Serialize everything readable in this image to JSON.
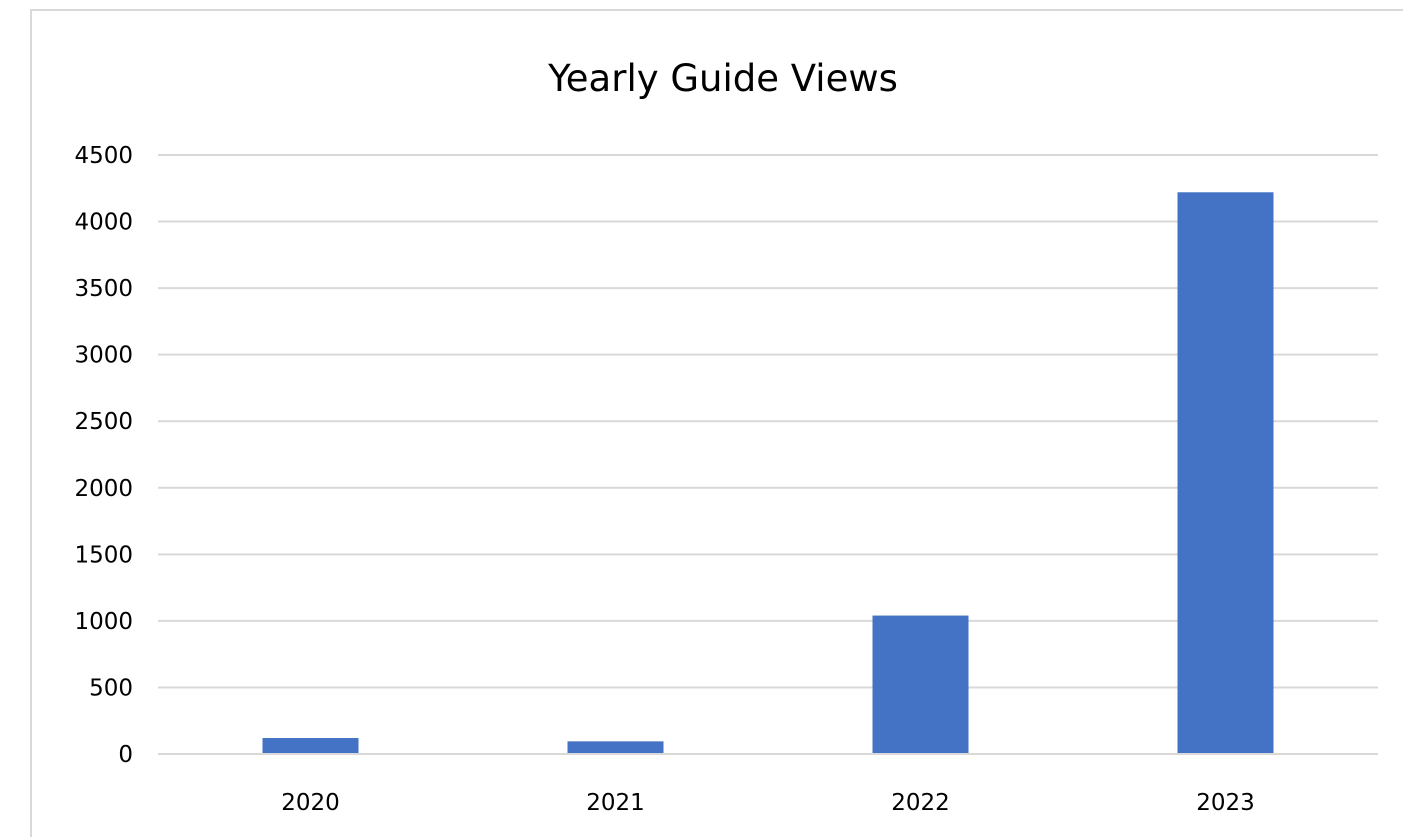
{
  "chart_data": {
    "type": "bar",
    "title": "Yearly Guide Views",
    "categories": [
      "2020",
      "2021",
      "2022",
      "2023"
    ],
    "series": [
      {
        "values": [
          120,
          95,
          1040,
          4220
        ]
      }
    ],
    "ylim": [
      0,
      4500
    ],
    "yticks": [
      "0",
      "500",
      "1000",
      "1500",
      "2000",
      "2500",
      "3000",
      "3500",
      "4000",
      "4500"
    ],
    "ytick_values": [
      0,
      500,
      1000,
      1500,
      2000,
      2500,
      3000,
      3500,
      4000,
      4500
    ],
    "grid": true,
    "legend": "none",
    "bar_color": "#4472c4",
    "grid_color": "#d9d9d9"
  }
}
